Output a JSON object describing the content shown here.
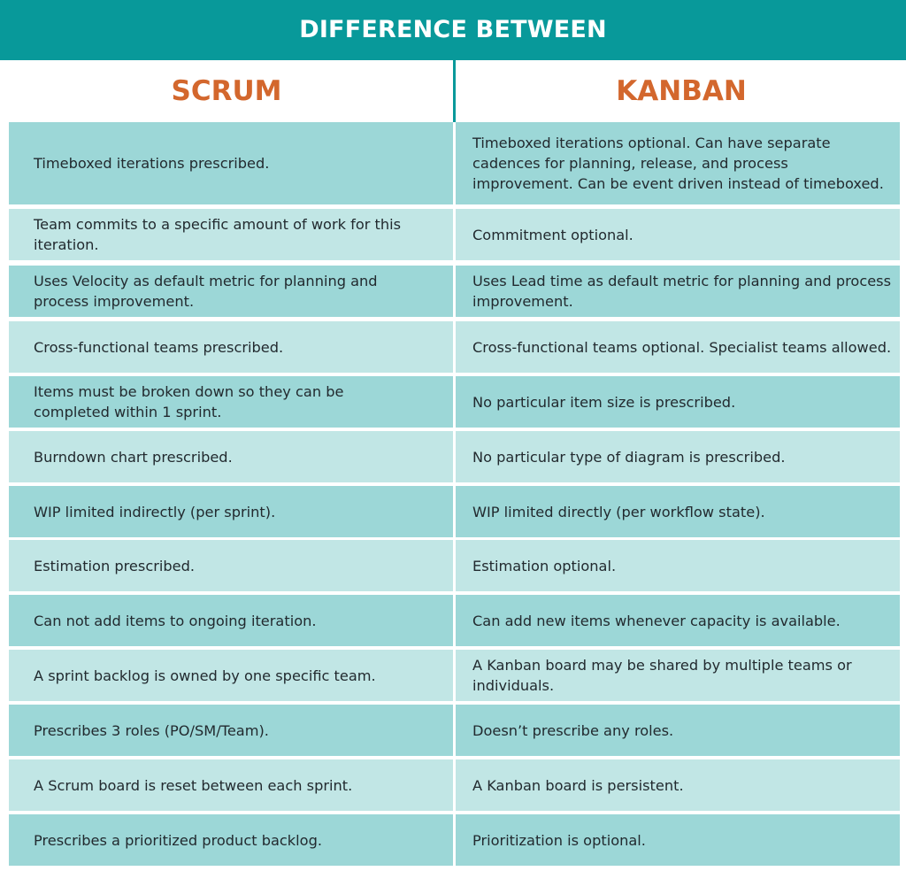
{
  "title": "DIFFERENCE BETWEEN",
  "columns": {
    "left": "SCRUM",
    "right": "KANBAN"
  },
  "colors": {
    "banner": "#08999a",
    "heading": "#d3672d",
    "row_dark": "#9cd7d7",
    "row_light": "#c1e6e5",
    "text": "#222a2f"
  },
  "rows": [
    {
      "scrum": "Timeboxed iterations prescribed.",
      "kanban": "Timeboxed iterations optional. Can have separate cadences for planning, release, and process improvement. Can be event driven instead of timeboxed."
    },
    {
      "scrum": "Team commits to a specific amount of work for this iteration.",
      "kanban": "Commitment optional."
    },
    {
      "scrum": "Uses Velocity as default metric for planning and process improvement.",
      "kanban": "Uses Lead time as default metric for planning and process improvement."
    },
    {
      "scrum": "Cross-functional teams prescribed.",
      "kanban": "Cross-functional teams optional. Specialist teams allowed."
    },
    {
      "scrum": "Items must be broken down so they can be completed within 1 sprint.",
      "kanban": "No particular item size is prescribed."
    },
    {
      "scrum": "Burndown chart prescribed.",
      "kanban": "No particular type of diagram is prescribed."
    },
    {
      "scrum": "WIP limited indirectly (per sprint).",
      "kanban": "WIP limited directly (per workflow state)."
    },
    {
      "scrum": "Estimation prescribed.",
      "kanban": "Estimation optional."
    },
    {
      "scrum": "Can not add items to ongoing iteration.",
      "kanban": "Can add new items whenever capacity is available."
    },
    {
      "scrum": "A sprint backlog is owned by one specific team.",
      "kanban": "A Kanban board may be shared by multiple teams or individuals."
    },
    {
      "scrum": "Prescribes 3 roles (PO/SM/Team).",
      "kanban": "Doesn’t prescribe any roles."
    },
    {
      "scrum": "A Scrum board is reset between each sprint.",
      "kanban": "A Kanban board is persistent."
    },
    {
      "scrum": "Prescribes a prioritized product backlog.",
      "kanban": "Prioritization is optional."
    }
  ]
}
